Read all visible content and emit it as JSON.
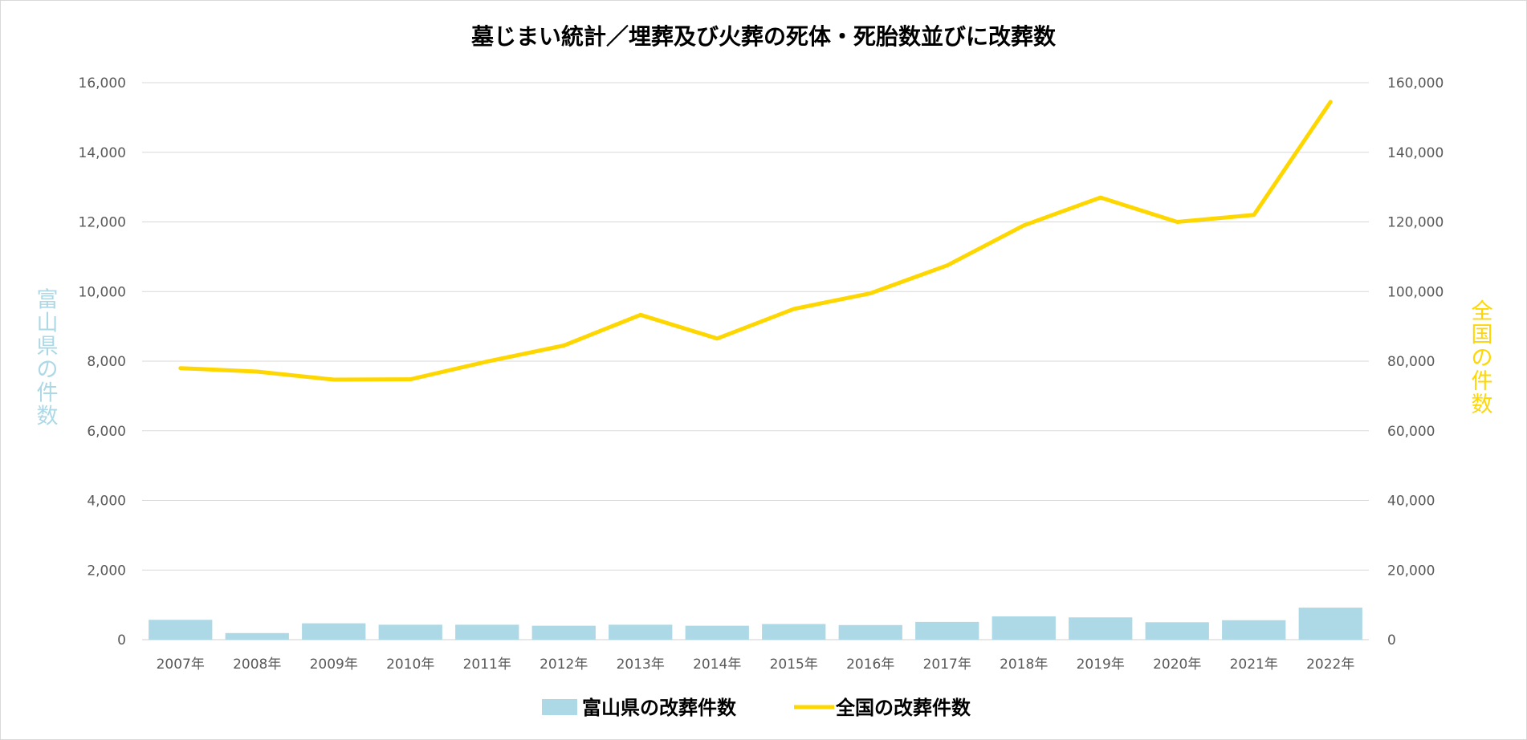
{
  "chart_data": {
    "type": "bar",
    "title": "墓じまい統計／埋葬及び火葬の死体・死胎数並びに改葬数",
    "categories": [
      "2007年",
      "2008年",
      "2009年",
      "2010年",
      "2011年",
      "2012年",
      "2013年",
      "2014年",
      "2015年",
      "2016年",
      "2017年",
      "2018年",
      "2019年",
      "2020年",
      "2021年",
      "2022年"
    ],
    "series": [
      {
        "name": "富山県の改葬件数",
        "type": "bar",
        "axis": "left",
        "color": "#add8e6",
        "values": [
          570,
          190,
          470,
          430,
          430,
          400,
          430,
          400,
          450,
          420,
          510,
          670,
          640,
          500,
          560,
          920
        ]
      },
      {
        "name": "全国の改葬件数",
        "type": "line",
        "axis": "right",
        "color": "#ffd700",
        "values": [
          78000,
          77000,
          74700,
          74800,
          79900,
          84500,
          93300,
          86500,
          95000,
          99500,
          107500,
          119000,
          127000,
          120000,
          122000,
          154500
        ]
      }
    ],
    "y_left": {
      "label": "富山県の件数",
      "ylim": [
        0,
        16000
      ],
      "ticks": [
        "0",
        "2,000",
        "4,000",
        "6,000",
        "8,000",
        "10,000",
        "12,000",
        "14,000",
        "16,000"
      ],
      "color": "#add8e6"
    },
    "y_right": {
      "label": "全国の件数",
      "ylim": [
        0,
        160000
      ],
      "ticks": [
        "0",
        "20,000",
        "40,000",
        "60,000",
        "80,000",
        "100,000",
        "120,000",
        "140,000",
        "160,000"
      ],
      "color": "#ffd700"
    },
    "grid": true,
    "legend_position": "bottom"
  }
}
